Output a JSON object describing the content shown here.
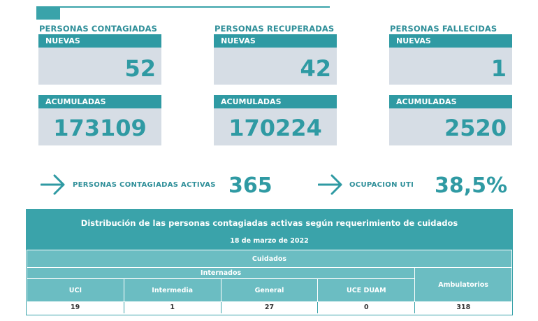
{
  "stats": {
    "contagiadas": {
      "title": "PERSONAS CONTAGIADAS",
      "nuevas_label": "NUEVAS",
      "nuevas": "52",
      "acumuladas_label": "ACUMULADAS",
      "acumuladas": "173109"
    },
    "recuperadas": {
      "title": "PERSONAS RECUPERADAS",
      "nuevas_label": "NUEVAS",
      "nuevas": "42",
      "acumuladas_label": "ACUMULADAS",
      "acumuladas": "170224"
    },
    "fallecidas": {
      "title": "PERSONAS FALLECIDAS",
      "nuevas_label": "NUEVAS",
      "nuevas": "1",
      "acumuladas_label": "ACUMULADAS",
      "acumuladas": "2520"
    }
  },
  "kpis": {
    "activas": {
      "label": "PERSONAS CONTAGIADAS ACTIVAS",
      "value": "365"
    },
    "uti": {
      "label": "OCUPACION UTI",
      "value": "38,5%"
    }
  },
  "table": {
    "title": "Distribución de las personas contagiadas activas según requerimiento de cuidados",
    "date": "18 de marzo de 2022",
    "header_cuidados": "Cuidados",
    "header_internados": "Internados",
    "columns": [
      "UCI",
      "Intermedia",
      "General",
      "UCE DUAM",
      "Ambulatorios"
    ],
    "values": [
      "19",
      "1",
      "27",
      "0",
      "318"
    ]
  },
  "colors": {
    "accent": "#2f9aa3",
    "box_bg": "#d6dde5",
    "header_light": "#6bbdc2"
  },
  "icons": {
    "arrow": "arrow-right-icon"
  }
}
